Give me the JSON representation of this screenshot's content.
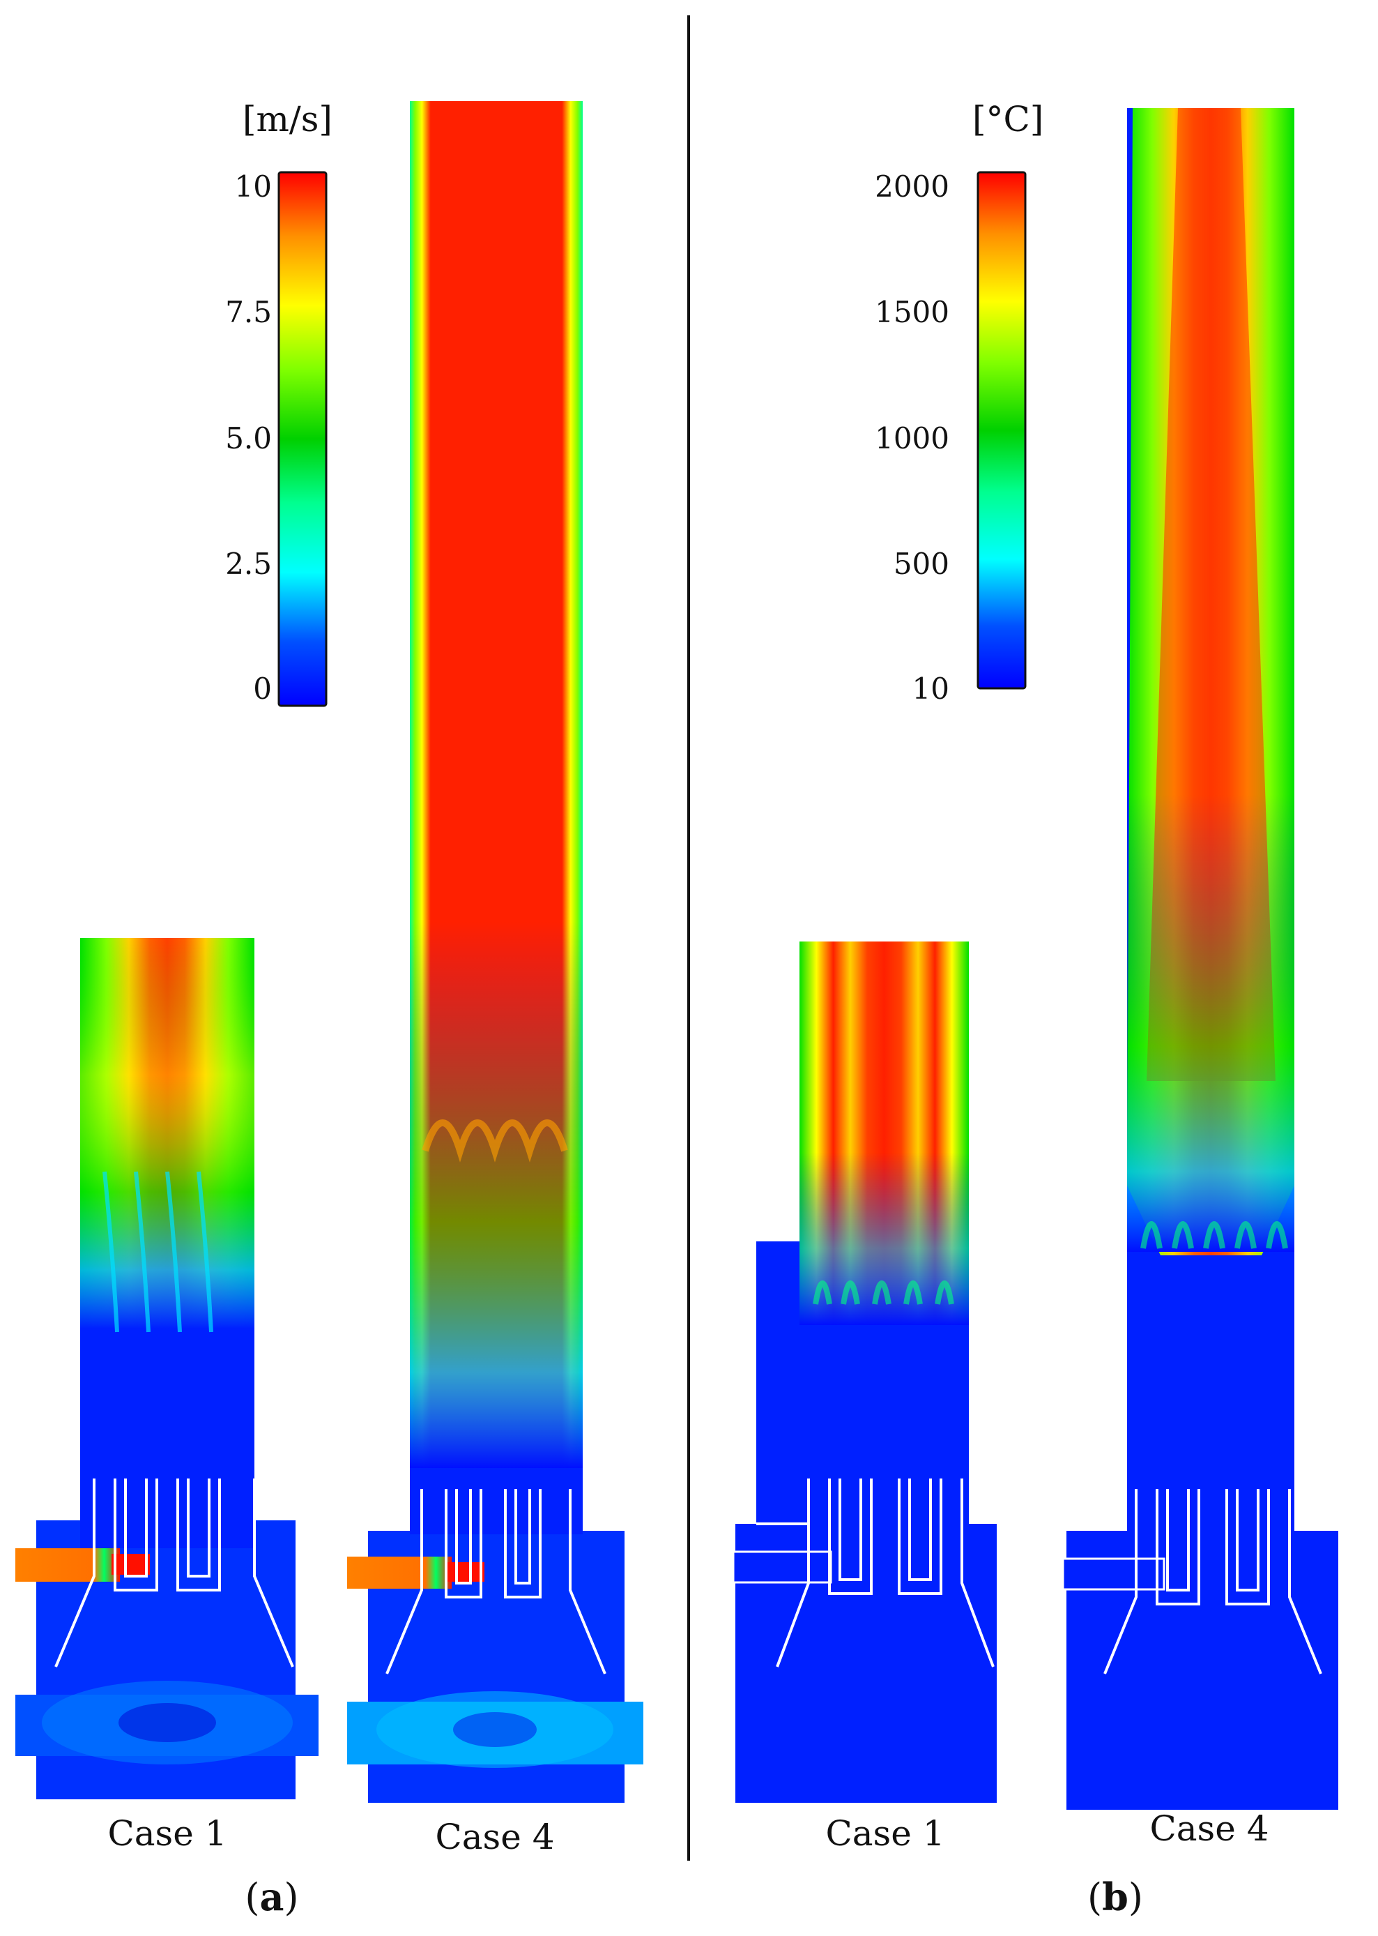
{
  "panels": [
    {
      "letter": "a",
      "unit": "[m/s]",
      "ticks": [
        "10",
        "7.5",
        "5.0",
        "2.5",
        "0"
      ],
      "cases": [
        "Case 1",
        "Case 4"
      ]
    },
    {
      "letter": "b",
      "unit": "[°C]",
      "ticks": [
        "2000",
        "1500",
        "1000",
        "500",
        "10"
      ],
      "cases": [
        "Case 1",
        "Case 4"
      ]
    }
  ],
  "colors": {
    "colormap": [
      "#0000ff",
      "#00a0ff",
      "#00ffff",
      "#00ff80",
      "#00e000",
      "#80ff00",
      "#ffff00",
      "#ffa000",
      "#ff5000",
      "#ff0000"
    ],
    "divider": "#111111"
  }
}
